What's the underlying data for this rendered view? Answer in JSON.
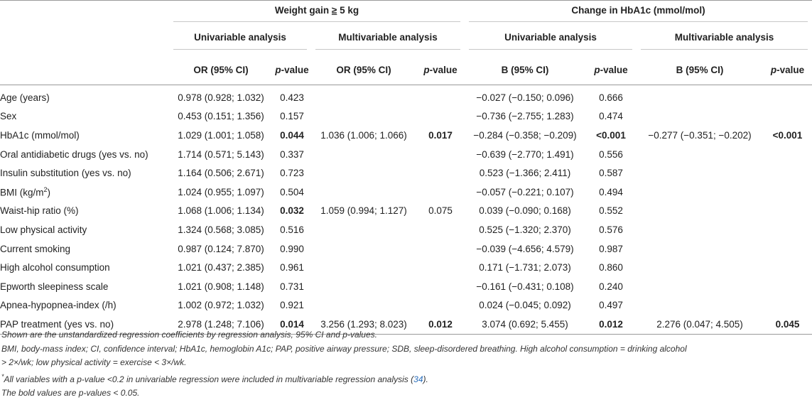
{
  "header": {
    "group_weight": "Weight gain ",
    "group_weight_ge": "≥",
    "group_weight_tail": " 5 kg",
    "group_hba1c": "Change in HbA1c (mmol/mol)",
    "univariable": "Univariable analysis",
    "multivariable": "Multivariable analysis",
    "col_or": "OR (95% CI)",
    "col_b": "B (95% CI)",
    "col_p_italic": "p",
    "col_p_rest": "-value"
  },
  "rows": [
    {
      "var": "Age (years)",
      "or_u": "0.978 (0.928; 1.032)",
      "p_u": "0.423",
      "p_u_bold": false,
      "or_m": "",
      "p_m": "",
      "p_m_bold": false,
      "b_u": "−0.027 (−0.150; 0.096)",
      "bp_u": "0.666",
      "bp_u_bold": false,
      "b_m": "",
      "bp_m": "",
      "bp_m_bold": false
    },
    {
      "var": "Sex",
      "or_u": "0.453 (0.151; 1.356)",
      "p_u": "0.157",
      "p_u_bold": false,
      "or_m": "",
      "p_m": "",
      "p_m_bold": false,
      "b_u": "−0.736 (−2.755; 1.283)",
      "bp_u": "0.474",
      "bp_u_bold": false,
      "b_m": "",
      "bp_m": "",
      "bp_m_bold": false
    },
    {
      "var": "HbA1c (mmol/mol)",
      "or_u": "1.029 (1.001; 1.058)",
      "p_u": "0.044",
      "p_u_bold": true,
      "or_m": "1.036 (1.006; 1.066)",
      "p_m": "0.017",
      "p_m_bold": true,
      "b_u": "−0.284 (−0.358; −0.209)",
      "bp_u": "<0.001",
      "bp_u_bold": true,
      "b_m": "−0.277 (−0.351; −0.202)",
      "bp_m": "<0.001",
      "bp_m_bold": true
    },
    {
      "var": "Oral antidiabetic drugs (yes vs. no)",
      "or_u": "1.714 (0.571; 5.143)",
      "p_u": "0.337",
      "p_u_bold": false,
      "or_m": "",
      "p_m": "",
      "p_m_bold": false,
      "b_u": "−0.639 (−2.770; 1.491)",
      "bp_u": "0.556",
      "bp_u_bold": false,
      "b_m": "",
      "bp_m": "",
      "bp_m_bold": false
    },
    {
      "var": "Insulin substitution (yes vs. no)",
      "or_u": "1.164 (0.506; 2.671)",
      "p_u": "0.723",
      "p_u_bold": false,
      "or_m": "",
      "p_m": "",
      "p_m_bold": false,
      "b_u": "0.523 (−1.366; 2.411)",
      "bp_u": "0.587",
      "bp_u_bold": false,
      "b_m": "",
      "bp_m": "",
      "bp_m_bold": false
    },
    {
      "var": "BMI (kg/m",
      "var_sup": "2",
      "var_tail": ")",
      "or_u": "1.024 (0.955; 1.097)",
      "p_u": "0.504",
      "p_u_bold": false,
      "or_m": "",
      "p_m": "",
      "p_m_bold": false,
      "b_u": "−0.057 (−0.221; 0.107)",
      "bp_u": "0.494",
      "bp_u_bold": false,
      "b_m": "",
      "bp_m": "",
      "bp_m_bold": false
    },
    {
      "var": "Waist-hip ratio (%)",
      "or_u": "1.068 (1.006; 1.134)",
      "p_u": "0.032",
      "p_u_bold": true,
      "or_m": "1.059 (0.994; 1.127)",
      "p_m": "0.075",
      "p_m_bold": false,
      "b_u": "0.039 (−0.090; 0.168)",
      "bp_u": "0.552",
      "bp_u_bold": false,
      "b_m": "",
      "bp_m": "",
      "bp_m_bold": false
    },
    {
      "var": "Low physical activity",
      "or_u": "1.324 (0.568; 3.085)",
      "p_u": "0.516",
      "p_u_bold": false,
      "or_m": "",
      "p_m": "",
      "p_m_bold": false,
      "b_u": "0.525 (−1.320; 2.370)",
      "bp_u": "0.576",
      "bp_u_bold": false,
      "b_m": "",
      "bp_m": "",
      "bp_m_bold": false
    },
    {
      "var": "Current smoking",
      "or_u": "0.987 (0.124; 7.870)",
      "p_u": "0.990",
      "p_u_bold": false,
      "or_m": "",
      "p_m": "",
      "p_m_bold": false,
      "b_u": "−0.039 (−4.656; 4.579)",
      "bp_u": "0.987",
      "bp_u_bold": false,
      "b_m": "",
      "bp_m": "",
      "bp_m_bold": false
    },
    {
      "var": "High alcohol consumption",
      "or_u": "1.021 (0.437; 2.385)",
      "p_u": "0.961",
      "p_u_bold": false,
      "or_m": "",
      "p_m": "",
      "p_m_bold": false,
      "b_u": "0.171 (−1.731; 2.073)",
      "bp_u": "0.860",
      "bp_u_bold": false,
      "b_m": "",
      "bp_m": "",
      "bp_m_bold": false
    },
    {
      "var": "Epworth sleepiness scale",
      "or_u": "1.021 (0.908; 1.148)",
      "p_u": "0.731",
      "p_u_bold": false,
      "or_m": "",
      "p_m": "",
      "p_m_bold": false,
      "b_u": "−0.161 (−0.431; 0.108)",
      "bp_u": "0.240",
      "bp_u_bold": false,
      "b_m": "",
      "bp_m": "",
      "bp_m_bold": false
    },
    {
      "var": "Apnea-hypopnea-index (/h)",
      "or_u": "1.002 (0.972; 1.032)",
      "p_u": "0.921",
      "p_u_bold": false,
      "or_m": "",
      "p_m": "",
      "p_m_bold": false,
      "b_u": "0.024 (−0.045; 0.092)",
      "bp_u": "0.497",
      "bp_u_bold": false,
      "b_m": "",
      "bp_m": "",
      "bp_m_bold": false
    },
    {
      "var": "PAP treatment (yes vs. no)",
      "or_u": "2.978 (1.248; 7.106)",
      "p_u": "0.014",
      "p_u_bold": true,
      "or_m": "3.256 (1.293; 8.023)",
      "p_m": "0.012",
      "p_m_bold": true,
      "b_u": "3.074 (0.692; 5.455)",
      "bp_u": "0.012",
      "bp_u_bold": true,
      "b_m": "2.276 (0.047; 4.505)",
      "bp_m": "0.045",
      "bp_m_bold": true
    }
  ],
  "footnotes": {
    "line1": "Shown are the unstandardized regression coefficients by regression analysis, 95% CI and p-values.",
    "line2a": "BMI, body-mass index; CI, confidence interval; HbA1c, hemoglobin A1c; PAP, positive airway pressure; SDB, sleep-disordered breathing. High alcohol consumption = drinking alcohol",
    "line2b": "> 2×/wk; low physical activity = exercise < 3×/wk.",
    "line3_mark": "*",
    "line3_text": "All variables with a p-value <0.2 in univariable regression were included in multivariable regression analysis (",
    "line3_ref": "34",
    "line3_tail": ").",
    "line4": "The bold values are p-values < 0.05."
  }
}
